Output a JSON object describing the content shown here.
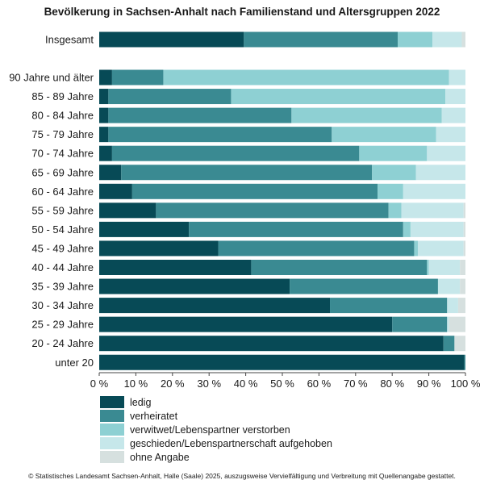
{
  "chart_data": {
    "type": "bar",
    "orientation": "horizontal",
    "stacked": true,
    "title": "Bevölkerung in Sachsen-Anhalt nach Familienstand und Altersgruppen 2022",
    "categories": [
      "Insgesamt",
      "90 Jahre und älter",
      "85 - 89 Jahre",
      "80 - 84 Jahre",
      "75 - 79 Jahre",
      "70 - 74 Jahre",
      "65 - 69 Jahre",
      "60 - 64 Jahre",
      "55 - 59 Jahre",
      "50 - 54 Jahre",
      "45 - 49 Jahre",
      "40 - 44 Jahre",
      "35 - 39 Jahre",
      "30 - 34 Jahre",
      "25 - 29 Jahre",
      "20 - 24 Jahre",
      "unter 20"
    ],
    "series": [
      {
        "name": "ledig",
        "color": "#074a56",
        "values": [
          39.5,
          3.5,
          2.5,
          2.5,
          2.5,
          3.5,
          6.0,
          9.0,
          15.5,
          24.5,
          32.5,
          41.5,
          52.0,
          63.0,
          80.0,
          94.0,
          99.7
        ]
      },
      {
        "name": "verheiratet",
        "color": "#3a8a92",
        "values": [
          42.0,
          14.0,
          33.5,
          50.0,
          61.0,
          67.5,
          68.5,
          67.0,
          63.5,
          58.5,
          53.5,
          48.0,
          40.5,
          32.0,
          15.0,
          3.0,
          0.3
        ]
      },
      {
        "name": "verwitwet/Lebenspartner verstorben",
        "color": "#8ed0d3",
        "values": [
          9.5,
          78.0,
          58.5,
          41.0,
          28.5,
          18.5,
          12.0,
          7.0,
          3.5,
          2.0,
          1.0,
          0.5,
          0.0,
          0.0,
          0.0,
          0.0,
          0.0
        ]
      },
      {
        "name": "geschieden/Lebenspartnerschaft aufgehoben",
        "color": "#c6e7ea",
        "values": [
          8.0,
          4.5,
          5.5,
          6.5,
          8.0,
          10.5,
          13.5,
          17.0,
          17.0,
          14.5,
          12.5,
          8.5,
          6.0,
          3.0,
          0.5,
          0.0,
          0.0
        ]
      },
      {
        "name": "ohne Angabe",
        "color": "#d6e0df",
        "values": [
          1.0,
          0.0,
          0.0,
          0.0,
          0.0,
          0.0,
          0.0,
          0.0,
          0.5,
          0.5,
          0.5,
          1.5,
          1.5,
          2.0,
          4.5,
          3.0,
          0.0
        ]
      }
    ],
    "xlim": [
      0,
      100
    ],
    "xticks": [
      "0 %",
      "10 %",
      "20 %",
      "30 %",
      "40 %",
      "50 %",
      "60 %",
      "70 %",
      "80 %",
      "90 %",
      "100 %"
    ],
    "grid": false,
    "legend_position": "bottom-left"
  },
  "footer": "© Statistisches Landesamt Sachsen-Anhalt, Halle (Saale) 2025, auszugsweise Vervielfältigung und Verbreitung mit Quellenangabe gestattet."
}
